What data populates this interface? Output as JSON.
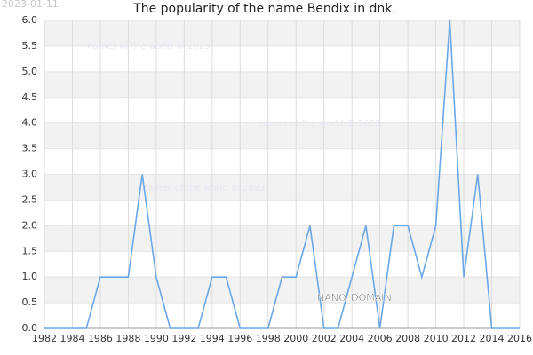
{
  "chart_data": {
    "type": "line",
    "title": "The popularity of the name Bendix in dnk.",
    "date_stamp": "2023-01-11",
    "watermarks": [
      "names of the world © 2023",
      "names of the world © 2023",
      "names of the world © 2023"
    ],
    "domain_label": "NANO_DOMAIN",
    "x": [
      1982,
      1983,
      1984,
      1985,
      1986,
      1987,
      1988,
      1989,
      1990,
      1991,
      1992,
      1993,
      1994,
      1995,
      1996,
      1997,
      1998,
      1999,
      2000,
      2001,
      2002,
      2003,
      2004,
      2005,
      2006,
      2007,
      2008,
      2009,
      2010,
      2011,
      2012,
      2013,
      2014,
      2015,
      2016
    ],
    "values": [
      0,
      0,
      0,
      0,
      1,
      1,
      1,
      3,
      1,
      0,
      0,
      0,
      1,
      1,
      0,
      0,
      0,
      1,
      1,
      2,
      0,
      0,
      1,
      2,
      0,
      2,
      2,
      1,
      2,
      6,
      1,
      3,
      0,
      0,
      0
    ],
    "color": "#6aa7e8",
    "xlim": [
      1982,
      2016
    ],
    "xticks": [
      1982,
      1984,
      1986,
      1988,
      1990,
      1992,
      1994,
      1996,
      1998,
      2000,
      2002,
      2004,
      2006,
      2008,
      2010,
      2012,
      2014,
      2016
    ],
    "ylim": [
      0,
      6
    ],
    "yticks": [
      {
        "value": 0,
        "label": "0.0"
      },
      {
        "value": 0.5,
        "label": "0.5"
      },
      {
        "value": 1,
        "label": "1.0"
      },
      {
        "value": 1.5,
        "label": "1.5"
      },
      {
        "value": 2,
        "label": "2.0"
      },
      {
        "value": 2.5,
        "label": "2.5"
      },
      {
        "value": 3,
        "label": "3.0"
      },
      {
        "value": 3.5,
        "label": "3.5"
      },
      {
        "value": 4,
        "label": "4.0"
      },
      {
        "value": 4.5,
        "label": "4.5"
      },
      {
        "value": 5,
        "label": "5.0"
      },
      {
        "value": 5.5,
        "label": "5.5"
      },
      {
        "value": 6,
        "label": "6.0"
      }
    ],
    "grid": true
  }
}
